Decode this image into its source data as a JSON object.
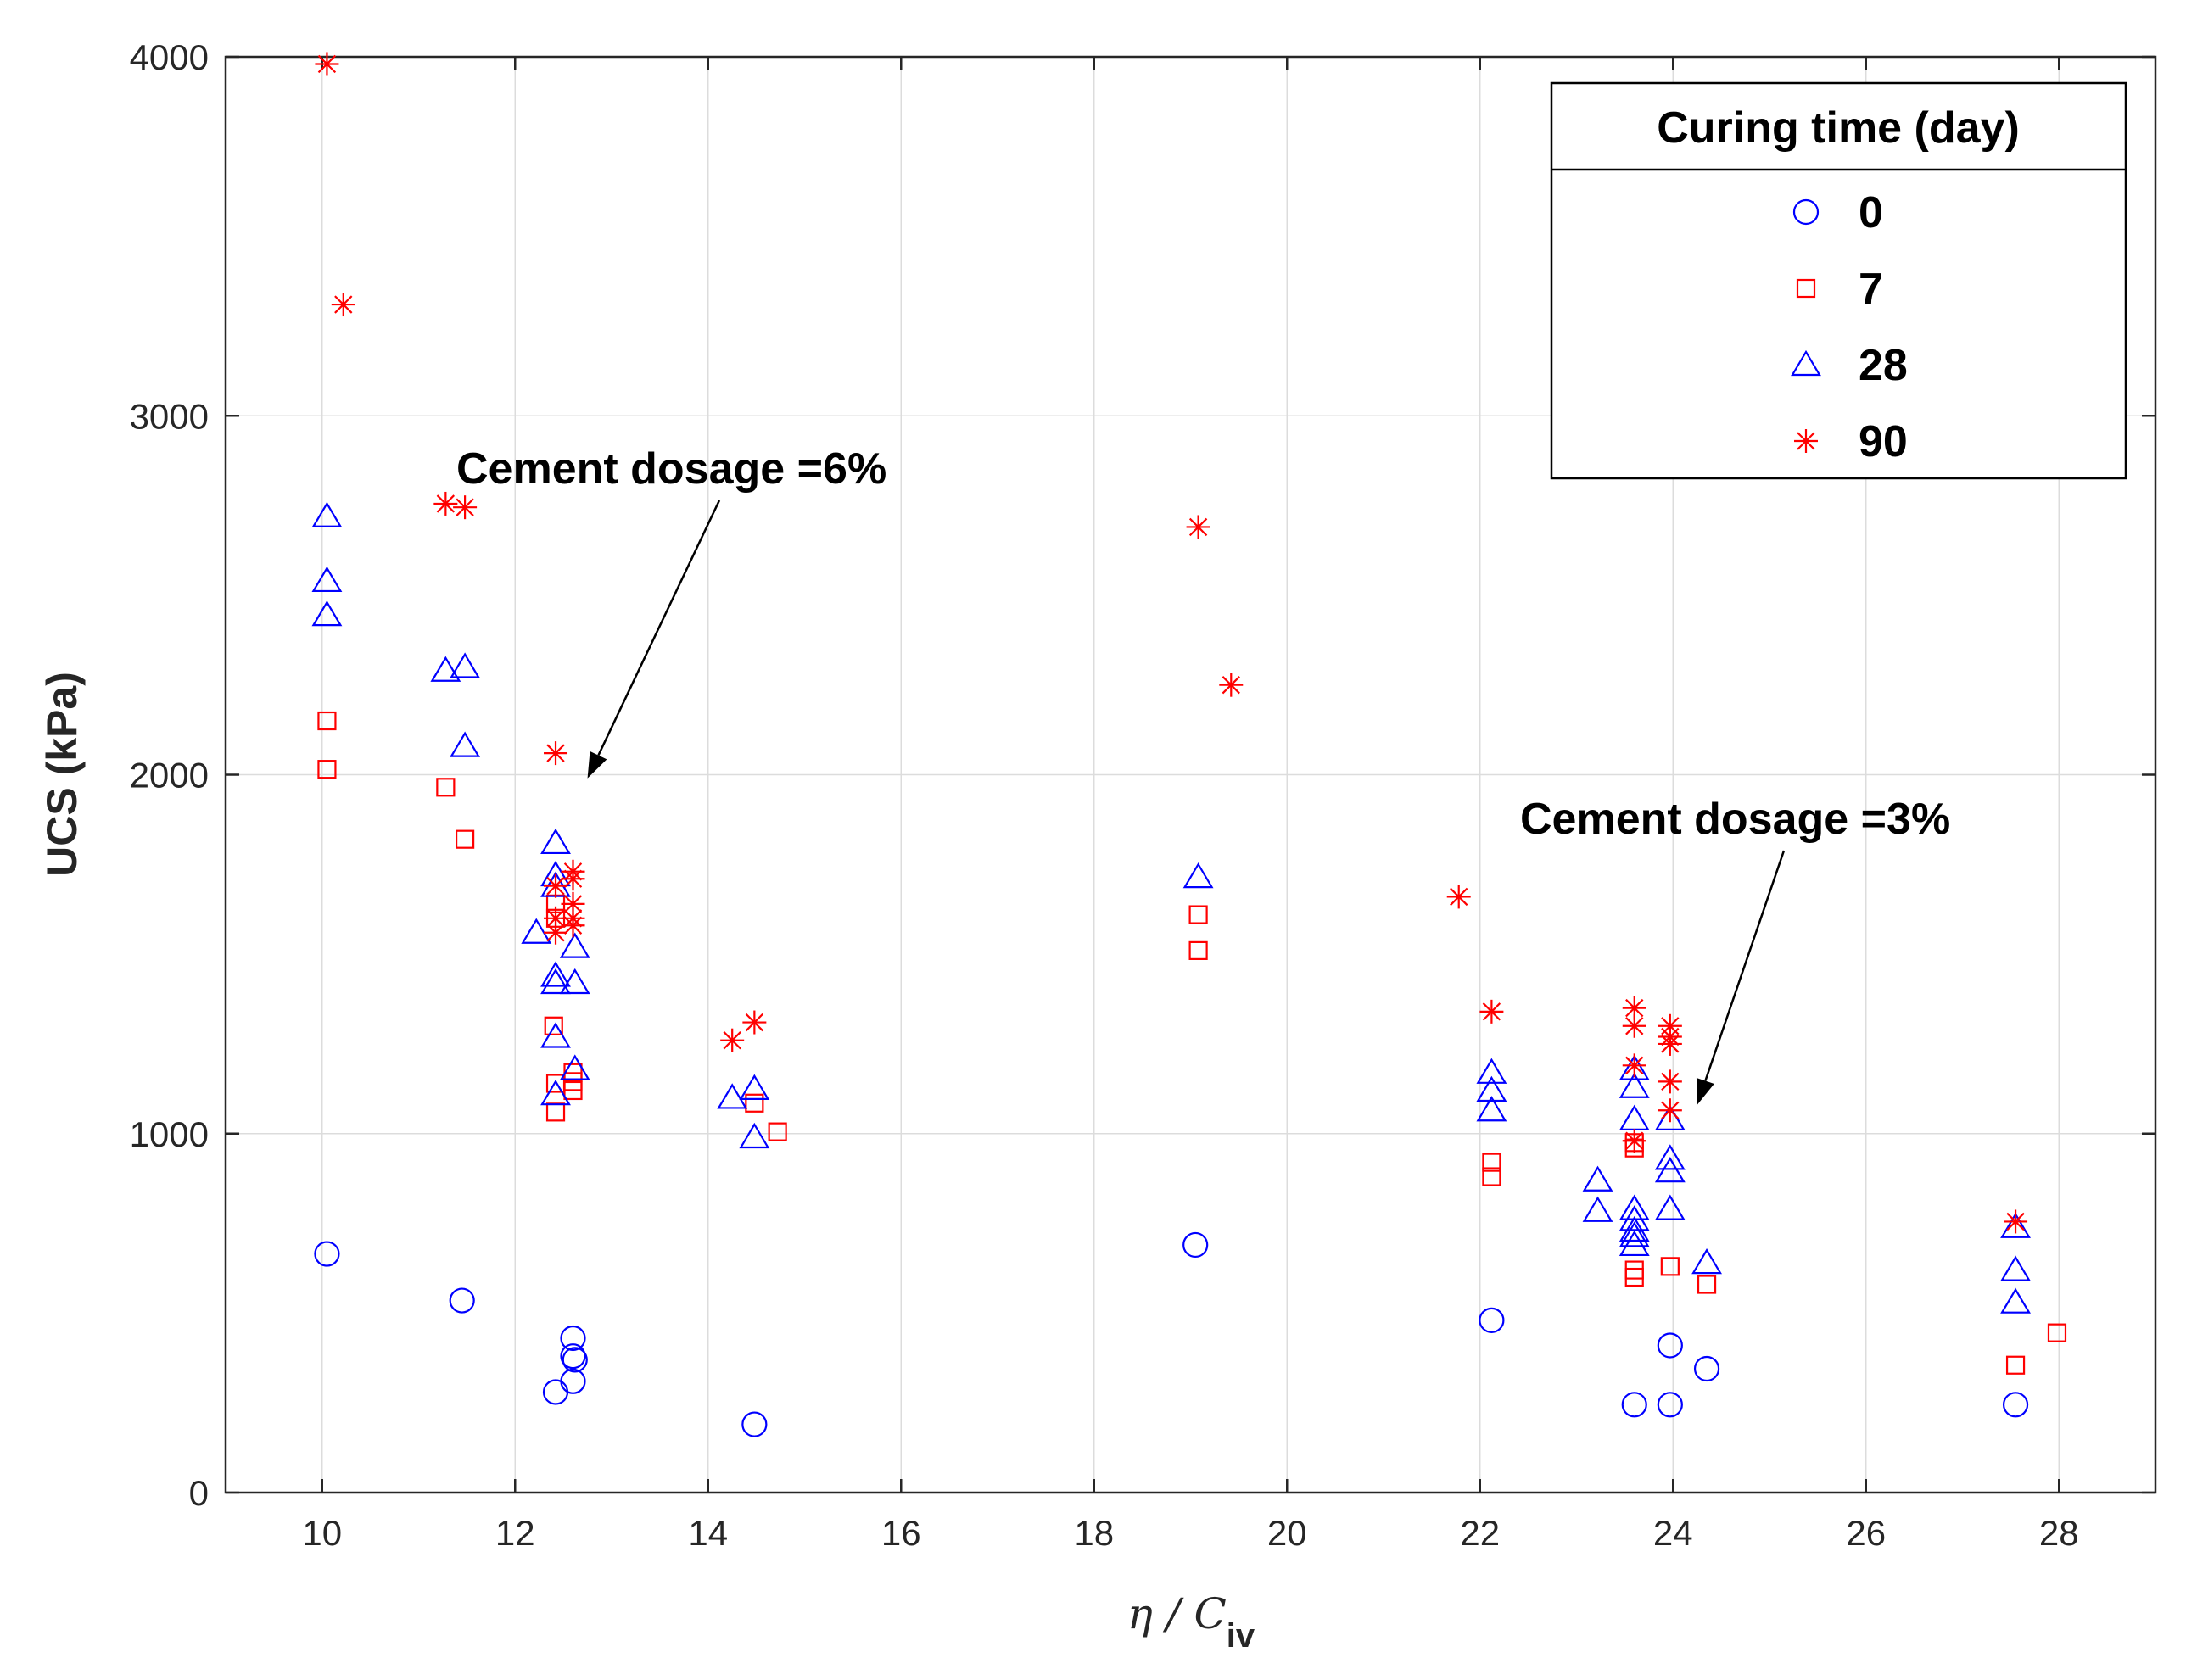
{
  "chart_data": {
    "type": "scatter",
    "title": "",
    "xlabel": "η / C",
    "xlabel_sub": "iv",
    "ylabel": "UCS (kPa)",
    "xlim": [
      9,
      29
    ],
    "ylim": [
      0,
      4000
    ],
    "xticks": [
      10,
      12,
      14,
      16,
      18,
      20,
      22,
      24,
      26,
      28
    ],
    "yticks": [
      0,
      1000,
      2000,
      3000,
      4000
    ],
    "grid": true,
    "legend": {
      "title": "Curing time (day)",
      "placement": "top-right"
    },
    "annotations": [
      {
        "text": "Cement dosage =6%",
        "points_to": [
          12.75,
          1990
        ]
      },
      {
        "text": "Cement dosage =3%",
        "points_to": [
          24.25,
          1080
        ]
      }
    ],
    "series": [
      {
        "name": "0",
        "marker": "circle",
        "color": "#0000ff",
        "points": [
          [
            10.05,
            665
          ],
          [
            11.45,
            535
          ],
          [
            12.42,
            280
          ],
          [
            12.6,
            430
          ],
          [
            12.6,
            380
          ],
          [
            12.62,
            370
          ],
          [
            12.6,
            310
          ],
          [
            14.48,
            190
          ],
          [
            19.05,
            690
          ],
          [
            22.12,
            480
          ],
          [
            23.6,
            245
          ],
          [
            23.97,
            410
          ],
          [
            23.97,
            245
          ],
          [
            24.35,
            345
          ],
          [
            27.55,
            245
          ]
        ]
      },
      {
        "name": "7",
        "marker": "square",
        "color": "#ff0000",
        "points": [
          [
            10.05,
            2150
          ],
          [
            10.05,
            2015
          ],
          [
            11.28,
            1965
          ],
          [
            11.48,
            1820
          ],
          [
            12.42,
            1640
          ],
          [
            12.42,
            1600
          ],
          [
            12.4,
            1300
          ],
          [
            12.42,
            1140
          ],
          [
            12.42,
            1060
          ],
          [
            12.6,
            1170
          ],
          [
            12.6,
            1145
          ],
          [
            12.6,
            1120
          ],
          [
            14.48,
            1085
          ],
          [
            14.72,
            1005
          ],
          [
            19.08,
            1610
          ],
          [
            19.08,
            1510
          ],
          [
            22.12,
            920
          ],
          [
            22.12,
            880
          ],
          [
            23.6,
            975
          ],
          [
            23.6,
            960
          ],
          [
            23.6,
            620
          ],
          [
            23.6,
            600
          ],
          [
            23.97,
            630
          ],
          [
            24.35,
            580
          ],
          [
            27.55,
            355
          ],
          [
            27.98,
            445
          ]
        ]
      },
      {
        "name": "28",
        "marker": "triangle",
        "color": "#0000ff",
        "points": [
          [
            10.05,
            2720
          ],
          [
            10.05,
            2540
          ],
          [
            10.05,
            2445
          ],
          [
            11.28,
            2290
          ],
          [
            11.48,
            2300
          ],
          [
            11.48,
            2080
          ],
          [
            12.22,
            1560
          ],
          [
            12.42,
            1810
          ],
          [
            12.42,
            1720
          ],
          [
            12.42,
            1690
          ],
          [
            12.42,
            1440
          ],
          [
            12.42,
            1420
          ],
          [
            12.42,
            1270
          ],
          [
            12.42,
            1110
          ],
          [
            12.62,
            1520
          ],
          [
            12.62,
            1420
          ],
          [
            12.62,
            1180
          ],
          [
            14.25,
            1100
          ],
          [
            14.48,
            1125
          ],
          [
            14.48,
            990
          ],
          [
            19.08,
            1715
          ],
          [
            22.12,
            1170
          ],
          [
            22.12,
            1120
          ],
          [
            22.12,
            1065
          ],
          [
            23.22,
            870
          ],
          [
            23.22,
            785
          ],
          [
            23.6,
            1180
          ],
          [
            23.6,
            1130
          ],
          [
            23.6,
            1040
          ],
          [
            23.6,
            790
          ],
          [
            23.6,
            760
          ],
          [
            23.6,
            730
          ],
          [
            23.6,
            715
          ],
          [
            23.6,
            690
          ],
          [
            23.97,
            1040
          ],
          [
            23.97,
            930
          ],
          [
            23.97,
            895
          ],
          [
            23.97,
            790
          ],
          [
            24.35,
            640
          ],
          [
            27.55,
            740
          ],
          [
            27.55,
            620
          ],
          [
            27.55,
            530
          ]
        ]
      },
      {
        "name": "90",
        "marker": "asterisk",
        "color": "#ff0000",
        "points": [
          [
            10.05,
            3980
          ],
          [
            10.22,
            3310
          ],
          [
            11.28,
            2755
          ],
          [
            11.48,
            2745
          ],
          [
            12.42,
            2060
          ],
          [
            12.42,
            1690
          ],
          [
            12.42,
            1600
          ],
          [
            12.42,
            1560
          ],
          [
            12.6,
            1730
          ],
          [
            12.6,
            1710
          ],
          [
            12.6,
            1640
          ],
          [
            12.6,
            1600
          ],
          [
            12.6,
            1580
          ],
          [
            14.25,
            1260
          ],
          [
            14.48,
            1310
          ],
          [
            19.08,
            2690
          ],
          [
            19.42,
            2250
          ],
          [
            21.78,
            1660
          ],
          [
            22.12,
            1340
          ],
          [
            23.6,
            1350
          ],
          [
            23.6,
            1300
          ],
          [
            23.6,
            1190
          ],
          [
            23.6,
            980
          ],
          [
            23.97,
            1300
          ],
          [
            23.97,
            1270
          ],
          [
            23.97,
            1250
          ],
          [
            23.97,
            1145
          ],
          [
            23.97,
            1065
          ],
          [
            27.55,
            755
          ]
        ]
      }
    ]
  }
}
